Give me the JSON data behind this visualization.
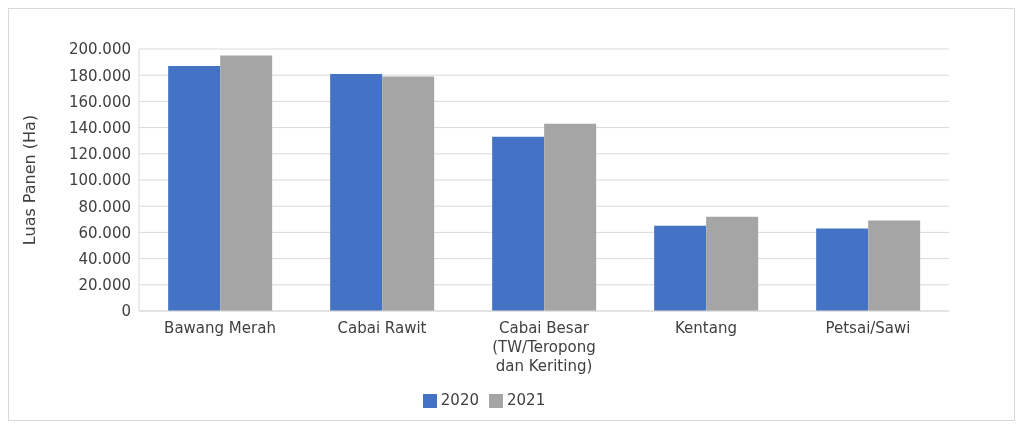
{
  "chart_data": {
    "type": "bar",
    "ylabel": "Luas Panen (Ha)",
    "categories": [
      "Bawang Merah",
      "Cabai Rawit",
      "Cabai Besar (TW/Teropong dan Keriting)",
      "Kentang",
      "Petsai/Sawi"
    ],
    "series": [
      {
        "name": "2020",
        "color": "#4472c4",
        "values": [
          187000,
          181000,
          133000,
          65000,
          63000
        ]
      },
      {
        "name": "2021",
        "color": "#a5a5a5",
        "values": [
          195000,
          179000,
          143000,
          72000,
          69000
        ]
      }
    ],
    "ylim": [
      0,
      200000
    ],
    "yticks": [
      0,
      {
        "value": 20000,
        "label": "20.000"
      },
      {
        "value": 40000,
        "label": "40.000"
      },
      {
        "value": 60000,
        "label": "60.000"
      },
      {
        "value": 80000,
        "label": "80.000"
      },
      {
        "value": 100000,
        "label": "100.000"
      },
      {
        "value": 120000,
        "label": "120.000"
      },
      {
        "value": 140000,
        "label": "140.000"
      },
      {
        "value": 160000,
        "label": "160.000"
      },
      {
        "value": 180000,
        "label": "180.000"
      },
      {
        "value": 200000,
        "label": "200.000"
      }
    ],
    "grid": "y",
    "legend": "bottom"
  }
}
